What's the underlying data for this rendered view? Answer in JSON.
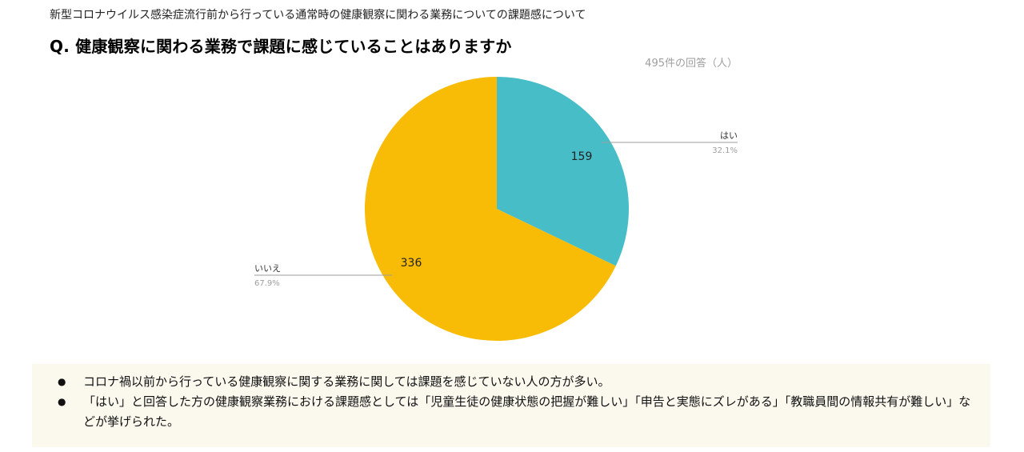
{
  "header": {
    "subtitle": "新型コロナウイルス感染症流行前から行っている通常時の健康観察に関わる業務についての課題感について",
    "question": "Q. 健康観察に関わる業務で課題に感じていることはありますか",
    "response_count": "495件の回答（人）"
  },
  "chart_data": {
    "type": "pie",
    "title": "Q. 健康観察に関わる業務で課題に感じていることはありますか",
    "total_label": "495件の回答（人）",
    "slices": [
      {
        "label": "はい",
        "value": 159,
        "value_label": "159",
        "percent_label": "32.1%",
        "color": "#47bdc8"
      },
      {
        "label": "いいえ",
        "value": 336,
        "value_label": "336",
        "percent_label": "67.9%",
        "color": "#f8bc06"
      }
    ],
    "legend": "none"
  },
  "notes": {
    "items": [
      "コロナ禍以前から行っている健康観察に関する業務に関しては課題を感じていない人の方が多い。",
      "「はい」と回答した方の健康観察業務における課題感としては「児童生徒の健康状態の把握が難しい」「申告と実態にズレがある」「教職員間の情報共有が難しい」などが挙げられた。"
    ]
  }
}
